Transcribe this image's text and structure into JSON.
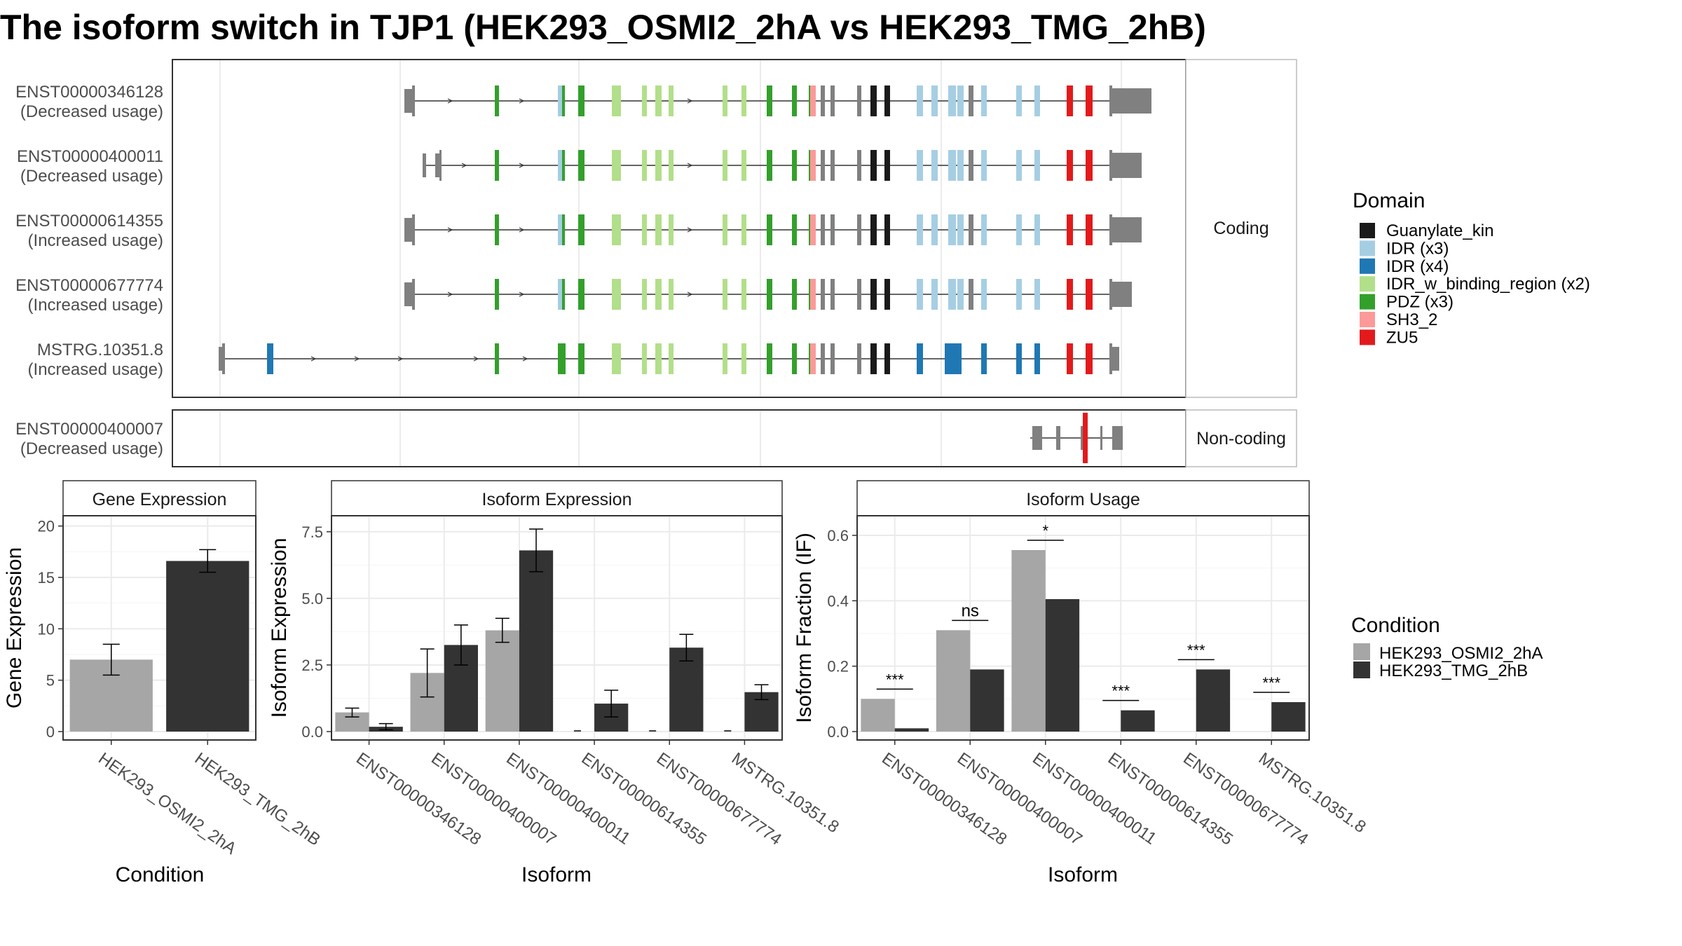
{
  "title": "The isoform switch in TJP1 (HEK293_OSMI2_2hA vs HEK293_TMG_2hB)",
  "colors": {
    "domains": {
      "Guanylate_kin": "#1a1a1a",
      "IDR (x3)": "#a6cee3",
      "IDR (x4)": "#1f78b4",
      "IDR_w_binding_region (x2)": "#b2df8a",
      "PDZ (x3)": "#33a02c",
      "SH3_2": "#fb9a99",
      "ZU5": "#e31a1c"
    },
    "utr": "#808080",
    "condition_a": "#a6a6a6",
    "condition_b": "#333333"
  },
  "structure": {
    "coding_strip": "Coding",
    "noncoding_strip": "Non-coding",
    "transcripts": [
      {
        "id": "ENST00000346128",
        "usage": "(Decreased usage)",
        "panel": "coding",
        "variant": "A"
      },
      {
        "id": "ENST00000400011",
        "usage": "(Decreased usage)",
        "panel": "coding",
        "variant": "B"
      },
      {
        "id": "ENST00000614355",
        "usage": "(Increased usage)",
        "panel": "coding",
        "variant": "A"
      },
      {
        "id": "ENST00000677774",
        "usage": "(Increased usage)",
        "panel": "coding",
        "variant": "A"
      },
      {
        "id": "MSTRG.10351.8",
        "usage": "(Increased usage)",
        "panel": "coding",
        "variant": "C"
      },
      {
        "id": "ENST00000400007",
        "usage": "(Decreased usage)",
        "panel": "noncoding",
        "variant": "D"
      }
    ],
    "legend_title": "Domain",
    "legend": [
      {
        "label": "Guanylate_kin",
        "key": "Guanylate_kin"
      },
      {
        "label": "IDR (x3)",
        "key": "IDR (x3)"
      },
      {
        "label": "IDR (x4)",
        "key": "IDR (x4)"
      },
      {
        "label": "IDR_w_binding_region (x2)",
        "key": "IDR_w_binding_region (x2)"
      },
      {
        "label": "PDZ (x3)",
        "key": "PDZ (x3)"
      },
      {
        "label": "SH3_2",
        "key": "SH3_2"
      },
      {
        "label": "ZU5",
        "key": "ZU5"
      }
    ]
  },
  "chart_data": [
    {
      "type": "bar",
      "title": "Gene Expression",
      "xlabel": "Condition",
      "ylabel": "Gene Expression",
      "ylim": [
        0,
        21
      ],
      "yticks": [
        0,
        5,
        10,
        15,
        20
      ],
      "tick_labels": [
        "0",
        "5",
        "10",
        "15",
        "20"
      ],
      "categories": [
        "HEK293_OSMI2_2hA",
        "HEK293_TMG_2hB"
      ],
      "values": [
        7.0,
        16.6
      ],
      "errors": [
        [
          5.5,
          8.5
        ],
        [
          15.5,
          17.7
        ]
      ]
    },
    {
      "type": "bar",
      "title": "Isoform Expression",
      "xlabel": "Isoform",
      "ylabel": "Isoform Expression",
      "ylim": [
        0,
        8.1
      ],
      "yticks": [
        0,
        2.5,
        5,
        7.5
      ],
      "tick_labels": [
        "0.0",
        "2.5",
        "5.0",
        "7.5"
      ],
      "categories": [
        "ENST00000346128",
        "ENST00000400007",
        "ENST00000400011",
        "ENST00000614355",
        "ENST00000677774",
        "MSTRG.10351.8"
      ],
      "series": [
        {
          "name": "HEK293_OSMI2_2hA",
          "values": [
            0.72,
            2.2,
            3.8,
            0.0,
            0.0,
            0.0
          ],
          "errors": [
            [
              0.55,
              0.88
            ],
            [
              1.3,
              3.1
            ],
            [
              3.35,
              4.25
            ],
            null,
            null,
            null
          ]
        },
        {
          "name": "HEK293_TMG_2hB",
          "values": [
            0.18,
            3.25,
            6.8,
            1.05,
            3.15,
            1.48
          ],
          "errors": [
            [
              0.07,
              0.3
            ],
            [
              2.5,
              4.0
            ],
            [
              6.0,
              7.6
            ],
            [
              0.55,
              1.55
            ],
            [
              2.65,
              3.65
            ],
            [
              1.2,
              1.76
            ]
          ]
        }
      ]
    },
    {
      "type": "bar",
      "title": "Isoform Usage",
      "xlabel": "Isoform",
      "ylabel": "Isoform Fraction (IF)",
      "ylim": [
        0,
        0.66
      ],
      "yticks": [
        0,
        0.2,
        0.4,
        0.6
      ],
      "tick_labels": [
        "0.0",
        "0.2",
        "0.4",
        "0.6"
      ],
      "categories": [
        "ENST00000346128",
        "ENST00000400007",
        "ENST00000400011",
        "ENST00000614355",
        "ENST00000677774",
        "MSTRG.10351.8"
      ],
      "series": [
        {
          "name": "HEK293_OSMI2_2hA",
          "values": [
            0.1,
            0.31,
            0.555,
            0.0,
            0.0,
            0.0
          ]
        },
        {
          "name": "HEK293_TMG_2hB",
          "values": [
            0.01,
            0.19,
            0.405,
            0.065,
            0.19,
            0.09
          ]
        }
      ],
      "significance": [
        "***",
        "ns",
        "*",
        "***",
        "***",
        "***"
      ],
      "significance_y": [
        0.13,
        0.34,
        0.585,
        0.095,
        0.22,
        0.12
      ]
    }
  ],
  "condition_legend": {
    "title": "Condition",
    "items": [
      "HEK293_OSMI2_2hA",
      "HEK293_TMG_2hB"
    ]
  }
}
